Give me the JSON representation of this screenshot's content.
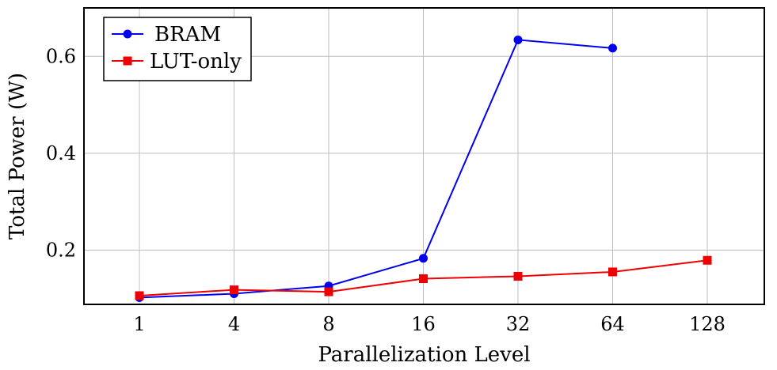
{
  "chart_data": {
    "type": "line",
    "xlabel": "Parallelization Level",
    "ylabel": "Total Power (W)",
    "categories": [
      "1",
      "4",
      "8",
      "16",
      "32",
      "64",
      "128"
    ],
    "ylim": [
      0.088,
      0.7
    ],
    "yticks": [
      0.2,
      0.4,
      0.6
    ],
    "ytick_labels": [
      "0.2",
      "0.4",
      "0.6"
    ],
    "grid": true,
    "legend_position": "top-left",
    "series": [
      {
        "name": "BRAM",
        "color": "#0000ee",
        "marker": "circle",
        "values": [
          0.102,
          0.11,
          0.126,
          0.183,
          0.634,
          0.617,
          null
        ]
      },
      {
        "name": "LUT-only",
        "color": "#ee0000",
        "marker": "square",
        "values": [
          0.106,
          0.118,
          0.114,
          0.141,
          0.146,
          0.155,
          0.179
        ]
      }
    ]
  }
}
